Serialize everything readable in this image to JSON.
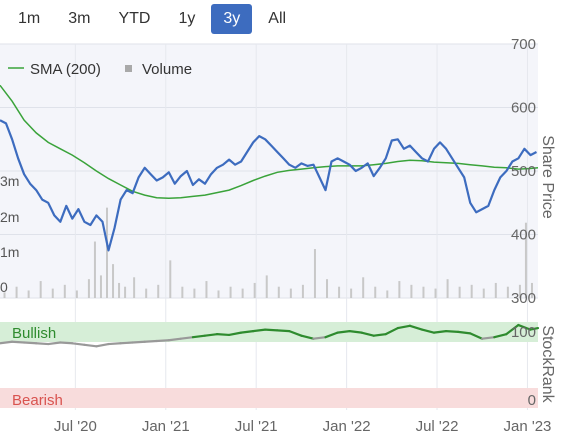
{
  "range_buttons": [
    {
      "label": "1m",
      "active": false
    },
    {
      "label": "3m",
      "active": false
    },
    {
      "label": "YTD",
      "active": false
    },
    {
      "label": "1y",
      "active": false
    },
    {
      "label": "3y",
      "active": true
    },
    {
      "label": "All",
      "active": false
    }
  ],
  "colors": {
    "price": "#3d6cbf",
    "sma": "#3aa33a",
    "volume": "#c8c8c8",
    "bullish_band": "#d6eed7",
    "bearish_band": "#f8dcdc",
    "bullish_text": "#2e8b2e",
    "bearish_text": "#d9534f",
    "stockrank_high": "#2e8b2e",
    "stockrank_low": "#999999"
  },
  "chart_data": {
    "type": "line",
    "price_axis": {
      "title": "Share Price",
      "ticks": [
        "700",
        "600",
        "500",
        "400",
        "300"
      ],
      "range": [
        300,
        700
      ]
    },
    "volume_axis": {
      "ticks": [
        "3m",
        "2m",
        "1m",
        "0"
      ],
      "range": [
        0,
        3.4
      ]
    },
    "stockrank_axis": {
      "title": "StockRank",
      "ticks": [
        "100",
        "0"
      ],
      "range": [
        0,
        100
      ]
    },
    "x_ticks": [
      {
        "label": "Jul '20",
        "t": 5.0
      },
      {
        "label": "Jan '21",
        "t": 11.0
      },
      {
        "label": "Jul '21",
        "t": 17.0
      },
      {
        "label": "Jan '22",
        "t": 23.0
      },
      {
        "label": "Jul '22",
        "t": 29.0
      },
      {
        "label": "Jan '23",
        "t": 35.0
      }
    ],
    "x_range": [
      0.0,
      35.7
    ],
    "legend": {
      "sma_label": "SMA (200)",
      "volume_label": "Volume"
    },
    "bands": {
      "bullish": "Bullish",
      "bearish": "Bearish"
    },
    "series": [
      {
        "name": "Price",
        "points": [
          [
            0.0,
            580
          ],
          [
            0.4,
            575
          ],
          [
            0.8,
            550
          ],
          [
            1.2,
            520
          ],
          [
            1.6,
            495
          ],
          [
            2.0,
            480
          ],
          [
            2.4,
            470
          ],
          [
            2.8,
            455
          ],
          [
            3.2,
            450
          ],
          [
            3.6,
            430
          ],
          [
            4.0,
            420
          ],
          [
            4.4,
            445
          ],
          [
            4.8,
            425
          ],
          [
            5.2,
            440
          ],
          [
            5.6,
            420
          ],
          [
            6.0,
            415
          ],
          [
            6.4,
            430
          ],
          [
            6.8,
            420
          ],
          [
            7.2,
            375
          ],
          [
            7.6,
            410
          ],
          [
            8.0,
            455
          ],
          [
            8.4,
            470
          ],
          [
            8.8,
            465
          ],
          [
            9.2,
            490
          ],
          [
            9.6,
            505
          ],
          [
            10.0,
            495
          ],
          [
            10.4,
            485
          ],
          [
            10.8,
            490
          ],
          [
            11.2,
            498
          ],
          [
            11.6,
            480
          ],
          [
            12.0,
            492
          ],
          [
            12.4,
            500
          ],
          [
            12.8,
            478
          ],
          [
            13.2,
            487
          ],
          [
            13.6,
            480
          ],
          [
            14.0,
            495
          ],
          [
            14.4,
            505
          ],
          [
            14.8,
            510
          ],
          [
            15.2,
            518
          ],
          [
            15.6,
            510
          ],
          [
            16.0,
            515
          ],
          [
            16.4,
            530
          ],
          [
            16.8,
            545
          ],
          [
            17.2,
            555
          ],
          [
            17.6,
            550
          ],
          [
            18.0,
            540
          ],
          [
            18.4,
            530
          ],
          [
            18.8,
            520
          ],
          [
            19.2,
            510
          ],
          [
            19.6,
            505
          ],
          [
            20.0,
            512
          ],
          [
            20.4,
            508
          ],
          [
            20.8,
            510
          ],
          [
            21.2,
            490
          ],
          [
            21.6,
            470
          ],
          [
            22.0,
            515
          ],
          [
            22.4,
            520
          ],
          [
            22.8,
            515
          ],
          [
            23.2,
            510
          ],
          [
            23.6,
            500
          ],
          [
            24.0,
            505
          ],
          [
            24.4,
            512
          ],
          [
            24.8,
            492
          ],
          [
            25.2,
            505
          ],
          [
            25.6,
            520
          ],
          [
            26.0,
            548
          ],
          [
            26.4,
            550
          ],
          [
            26.8,
            535
          ],
          [
            27.2,
            540
          ],
          [
            27.6,
            530
          ],
          [
            28.0,
            520
          ],
          [
            28.4,
            515
          ],
          [
            28.8,
            535
          ],
          [
            29.2,
            545
          ],
          [
            29.6,
            535
          ],
          [
            30.0,
            520
          ],
          [
            30.4,
            505
          ],
          [
            30.8,
            490
          ],
          [
            31.2,
            450
          ],
          [
            31.6,
            435
          ],
          [
            32.0,
            440
          ],
          [
            32.4,
            445
          ],
          [
            32.8,
            470
          ],
          [
            33.2,
            490
          ],
          [
            33.6,
            500
          ],
          [
            34.0,
            515
          ],
          [
            34.4,
            520
          ],
          [
            34.8,
            535
          ],
          [
            35.2,
            525
          ],
          [
            35.6,
            530
          ]
        ]
      },
      {
        "name": "SMA (200)",
        "points": [
          [
            0.0,
            635
          ],
          [
            0.8,
            610
          ],
          [
            1.6,
            580
          ],
          [
            2.4,
            560
          ],
          [
            3.2,
            545
          ],
          [
            4.0,
            535
          ],
          [
            4.8,
            525
          ],
          [
            5.6,
            513
          ],
          [
            6.4,
            500
          ],
          [
            7.2,
            488
          ],
          [
            8.0,
            478
          ],
          [
            8.8,
            468
          ],
          [
            9.6,
            462
          ],
          [
            10.4,
            458
          ],
          [
            11.2,
            457
          ],
          [
            12.0,
            458
          ],
          [
            12.8,
            460
          ],
          [
            13.6,
            462
          ],
          [
            14.4,
            466
          ],
          [
            15.2,
            470
          ],
          [
            16.0,
            477
          ],
          [
            16.8,
            485
          ],
          [
            17.6,
            492
          ],
          [
            18.4,
            498
          ],
          [
            19.2,
            501
          ],
          [
            20.0,
            503
          ],
          [
            20.8,
            505
          ],
          [
            21.6,
            507
          ],
          [
            22.4,
            508
          ],
          [
            23.2,
            508
          ],
          [
            24.0,
            508
          ],
          [
            24.8,
            510
          ],
          [
            25.6,
            512
          ],
          [
            26.4,
            515
          ],
          [
            27.2,
            517
          ],
          [
            28.0,
            516
          ],
          [
            28.8,
            514
          ],
          [
            29.6,
            513
          ],
          [
            30.4,
            512
          ],
          [
            31.2,
            510
          ],
          [
            32.0,
            508
          ],
          [
            32.8,
            506
          ],
          [
            33.6,
            505
          ],
          [
            34.4,
            503
          ],
          [
            35.2,
            504
          ],
          [
            35.7,
            505
          ]
        ]
      },
      {
        "name": "Volume",
        "bars": [
          [
            0.3,
            0.15
          ],
          [
            1.1,
            0.3
          ],
          [
            1.9,
            0.2
          ],
          [
            2.7,
            0.45
          ],
          [
            3.5,
            0.25
          ],
          [
            4.3,
            0.35
          ],
          [
            5.1,
            0.2
          ],
          [
            5.9,
            0.5
          ],
          [
            6.3,
            1.5
          ],
          [
            6.7,
            0.6
          ],
          [
            7.1,
            2.4
          ],
          [
            7.5,
            0.9
          ],
          [
            7.9,
            0.4
          ],
          [
            8.3,
            0.3
          ],
          [
            8.9,
            0.55
          ],
          [
            9.7,
            0.25
          ],
          [
            10.5,
            0.35
          ],
          [
            11.3,
            1.0
          ],
          [
            12.1,
            0.3
          ],
          [
            12.9,
            0.25
          ],
          [
            13.7,
            0.45
          ],
          [
            14.5,
            0.2
          ],
          [
            15.3,
            0.3
          ],
          [
            16.1,
            0.25
          ],
          [
            16.9,
            0.4
          ],
          [
            17.7,
            0.6
          ],
          [
            18.5,
            0.3
          ],
          [
            19.3,
            0.25
          ],
          [
            20.1,
            0.35
          ],
          [
            20.9,
            1.3
          ],
          [
            21.7,
            0.5
          ],
          [
            22.5,
            0.3
          ],
          [
            23.3,
            0.25
          ],
          [
            24.1,
            0.55
          ],
          [
            24.9,
            0.3
          ],
          [
            25.7,
            0.2
          ],
          [
            26.5,
            0.45
          ],
          [
            27.3,
            0.35
          ],
          [
            28.1,
            0.3
          ],
          [
            28.9,
            0.25
          ],
          [
            29.7,
            0.5
          ],
          [
            30.5,
            0.3
          ],
          [
            31.3,
            0.35
          ],
          [
            32.1,
            0.25
          ],
          [
            32.9,
            0.4
          ],
          [
            33.7,
            0.3
          ],
          [
            34.5,
            0.35
          ],
          [
            34.9,
            2.0
          ],
          [
            35.3,
            0.4
          ]
        ]
      },
      {
        "name": "StockRank",
        "points": [
          [
            0.0,
            72
          ],
          [
            0.8,
            74
          ],
          [
            1.6,
            73
          ],
          [
            2.4,
            72
          ],
          [
            3.2,
            71
          ],
          [
            4.0,
            73
          ],
          [
            4.8,
            72
          ],
          [
            5.6,
            70
          ],
          [
            6.4,
            68
          ],
          [
            7.2,
            71
          ],
          [
            8.0,
            72
          ],
          [
            8.8,
            73
          ],
          [
            9.6,
            74
          ],
          [
            10.4,
            75
          ],
          [
            11.2,
            76
          ],
          [
            12.0,
            78
          ],
          [
            12.8,
            80
          ],
          [
            13.6,
            82
          ],
          [
            14.4,
            84
          ],
          [
            15.2,
            83
          ],
          [
            16.0,
            86
          ],
          [
            16.8,
            88
          ],
          [
            17.6,
            90
          ],
          [
            18.4,
            89
          ],
          [
            19.2,
            88
          ],
          [
            20.0,
            82
          ],
          [
            20.8,
            78
          ],
          [
            21.6,
            80
          ],
          [
            22.4,
            86
          ],
          [
            23.2,
            88
          ],
          [
            24.0,
            86
          ],
          [
            24.8,
            82
          ],
          [
            25.6,
            84
          ],
          [
            26.4,
            92
          ],
          [
            27.2,
            95
          ],
          [
            28.0,
            90
          ],
          [
            28.8,
            86
          ],
          [
            29.6,
            88
          ],
          [
            30.4,
            87
          ],
          [
            31.2,
            85
          ],
          [
            32.0,
            78
          ],
          [
            32.8,
            80
          ],
          [
            33.6,
            84
          ],
          [
            34.4,
            96
          ],
          [
            35.2,
            90
          ],
          [
            35.7,
            92
          ]
        ]
      }
    ]
  }
}
